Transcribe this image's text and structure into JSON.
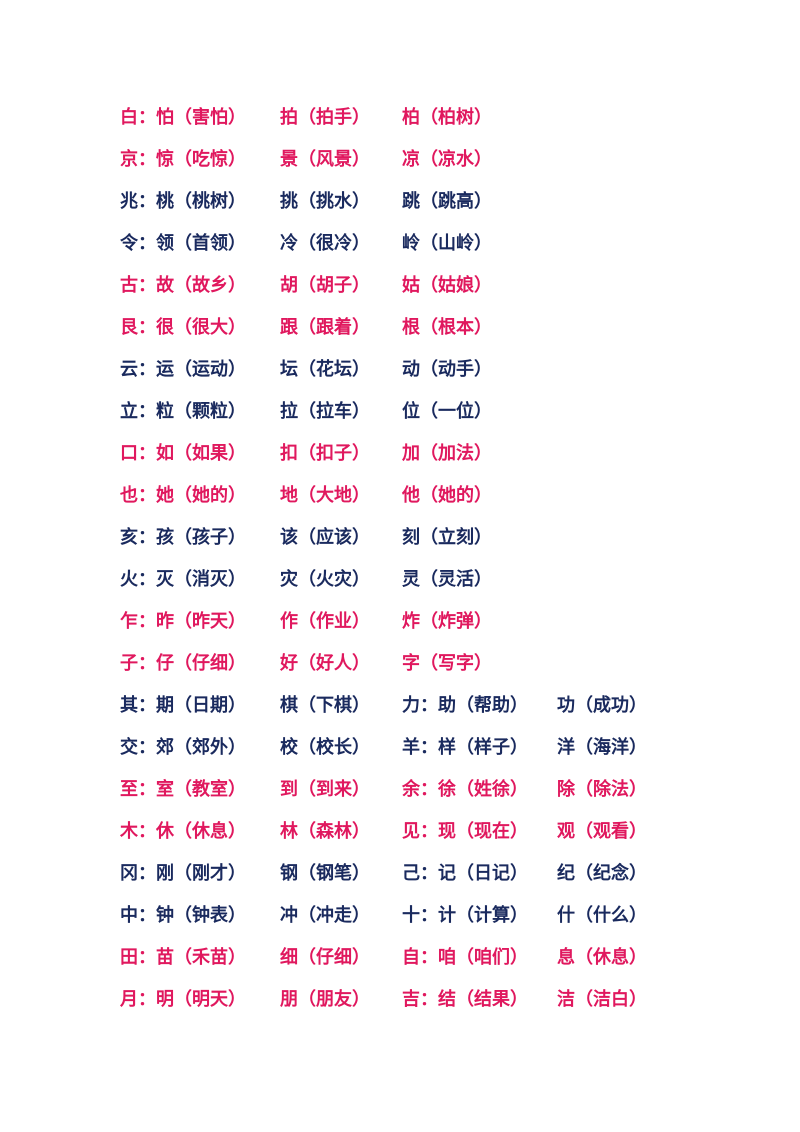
{
  "colors": {
    "pink": "#e0185e",
    "navy": "#1a2a5e"
  },
  "rows": [
    {
      "color": "pink",
      "cells": [
        "白：怕（害怕）",
        "拍（拍手）",
        "柏（柏树）"
      ]
    },
    {
      "color": "pink",
      "cells": [
        "京：惊（吃惊）",
        "景（风景）",
        "凉（凉水）"
      ]
    },
    {
      "color": "navy",
      "cells": [
        "兆：桃（桃树）",
        "挑（挑水）",
        "跳（跳高）"
      ]
    },
    {
      "color": "navy",
      "cells": [
        "令：领（首领）",
        "冷（很冷）",
        "岭（山岭）"
      ]
    },
    {
      "color": "pink",
      "cells": [
        "古：故（故乡）",
        "胡（胡子）",
        "姑（姑娘）"
      ]
    },
    {
      "color": "pink",
      "cells": [
        "艮：很（很大）",
        "跟（跟着）",
        "根（根本）"
      ]
    },
    {
      "color": "navy",
      "cells": [
        "云：运（运动）",
        "坛（花坛）",
        "动（动手）"
      ]
    },
    {
      "color": "navy",
      "cells": [
        "立：粒（颗粒）",
        "拉（拉车）",
        "位（一位）"
      ]
    },
    {
      "color": "pink",
      "cells": [
        "口：如（如果）",
        "扣（扣子）",
        "加（加法）"
      ]
    },
    {
      "color": "pink",
      "cells": [
        "也：她（她的）",
        "地（大地）",
        "他（她的）"
      ]
    },
    {
      "color": "navy",
      "cells": [
        "亥：孩（孩子）",
        "该（应该）",
        "刻（立刻）"
      ]
    },
    {
      "color": "navy",
      "cells": [
        "火：灭（消灭）",
        "灾（火灾）",
        "灵（灵活）"
      ]
    },
    {
      "color": "pink",
      "cells": [
        "乍：昨（昨天）",
        "作（作业）",
        "炸（炸弹）"
      ]
    },
    {
      "color": "pink",
      "cells": [
        "子：仔（仔细）",
        "好（好人）",
        "字（写字）"
      ]
    },
    {
      "color": "navy",
      "cells": [
        "其：期（日期）",
        "棋（下棋）",
        "力：助（帮助）",
        "功（成功）"
      ]
    },
    {
      "color": "navy",
      "cells": [
        "交：郊（郊外）",
        "校（校长）",
        "羊：样（样子）",
        "洋（海洋）"
      ]
    },
    {
      "color": "pink",
      "cells": [
        "至：室（教室）",
        "到（到来）",
        "余：徐（姓徐）",
        "除（除法）"
      ]
    },
    {
      "color": "pink",
      "cells": [
        "木：休（休息）",
        "林（森林）",
        "见：现（现在）",
        "观（观看）"
      ]
    },
    {
      "color": "navy",
      "cells": [
        "冈：刚（刚才）",
        "钢（钢笔）",
        "己：记（日记）",
        "纪（纪念）"
      ]
    },
    {
      "color": "navy",
      "cells": [
        "中：钟（钟表）",
        "冲（冲走）",
        "十：计（计算）",
        "什（什么）"
      ]
    },
    {
      "color": "pink",
      "cells": [
        "田：苗（禾苗）",
        "细（仔细）",
        "自：咱（咱们）",
        "息（休息）"
      ]
    },
    {
      "color": "pink",
      "cells": [
        "月：明（明天）",
        "朋（朋友）",
        "吉：结（结果）",
        "洁（洁白）"
      ]
    }
  ]
}
